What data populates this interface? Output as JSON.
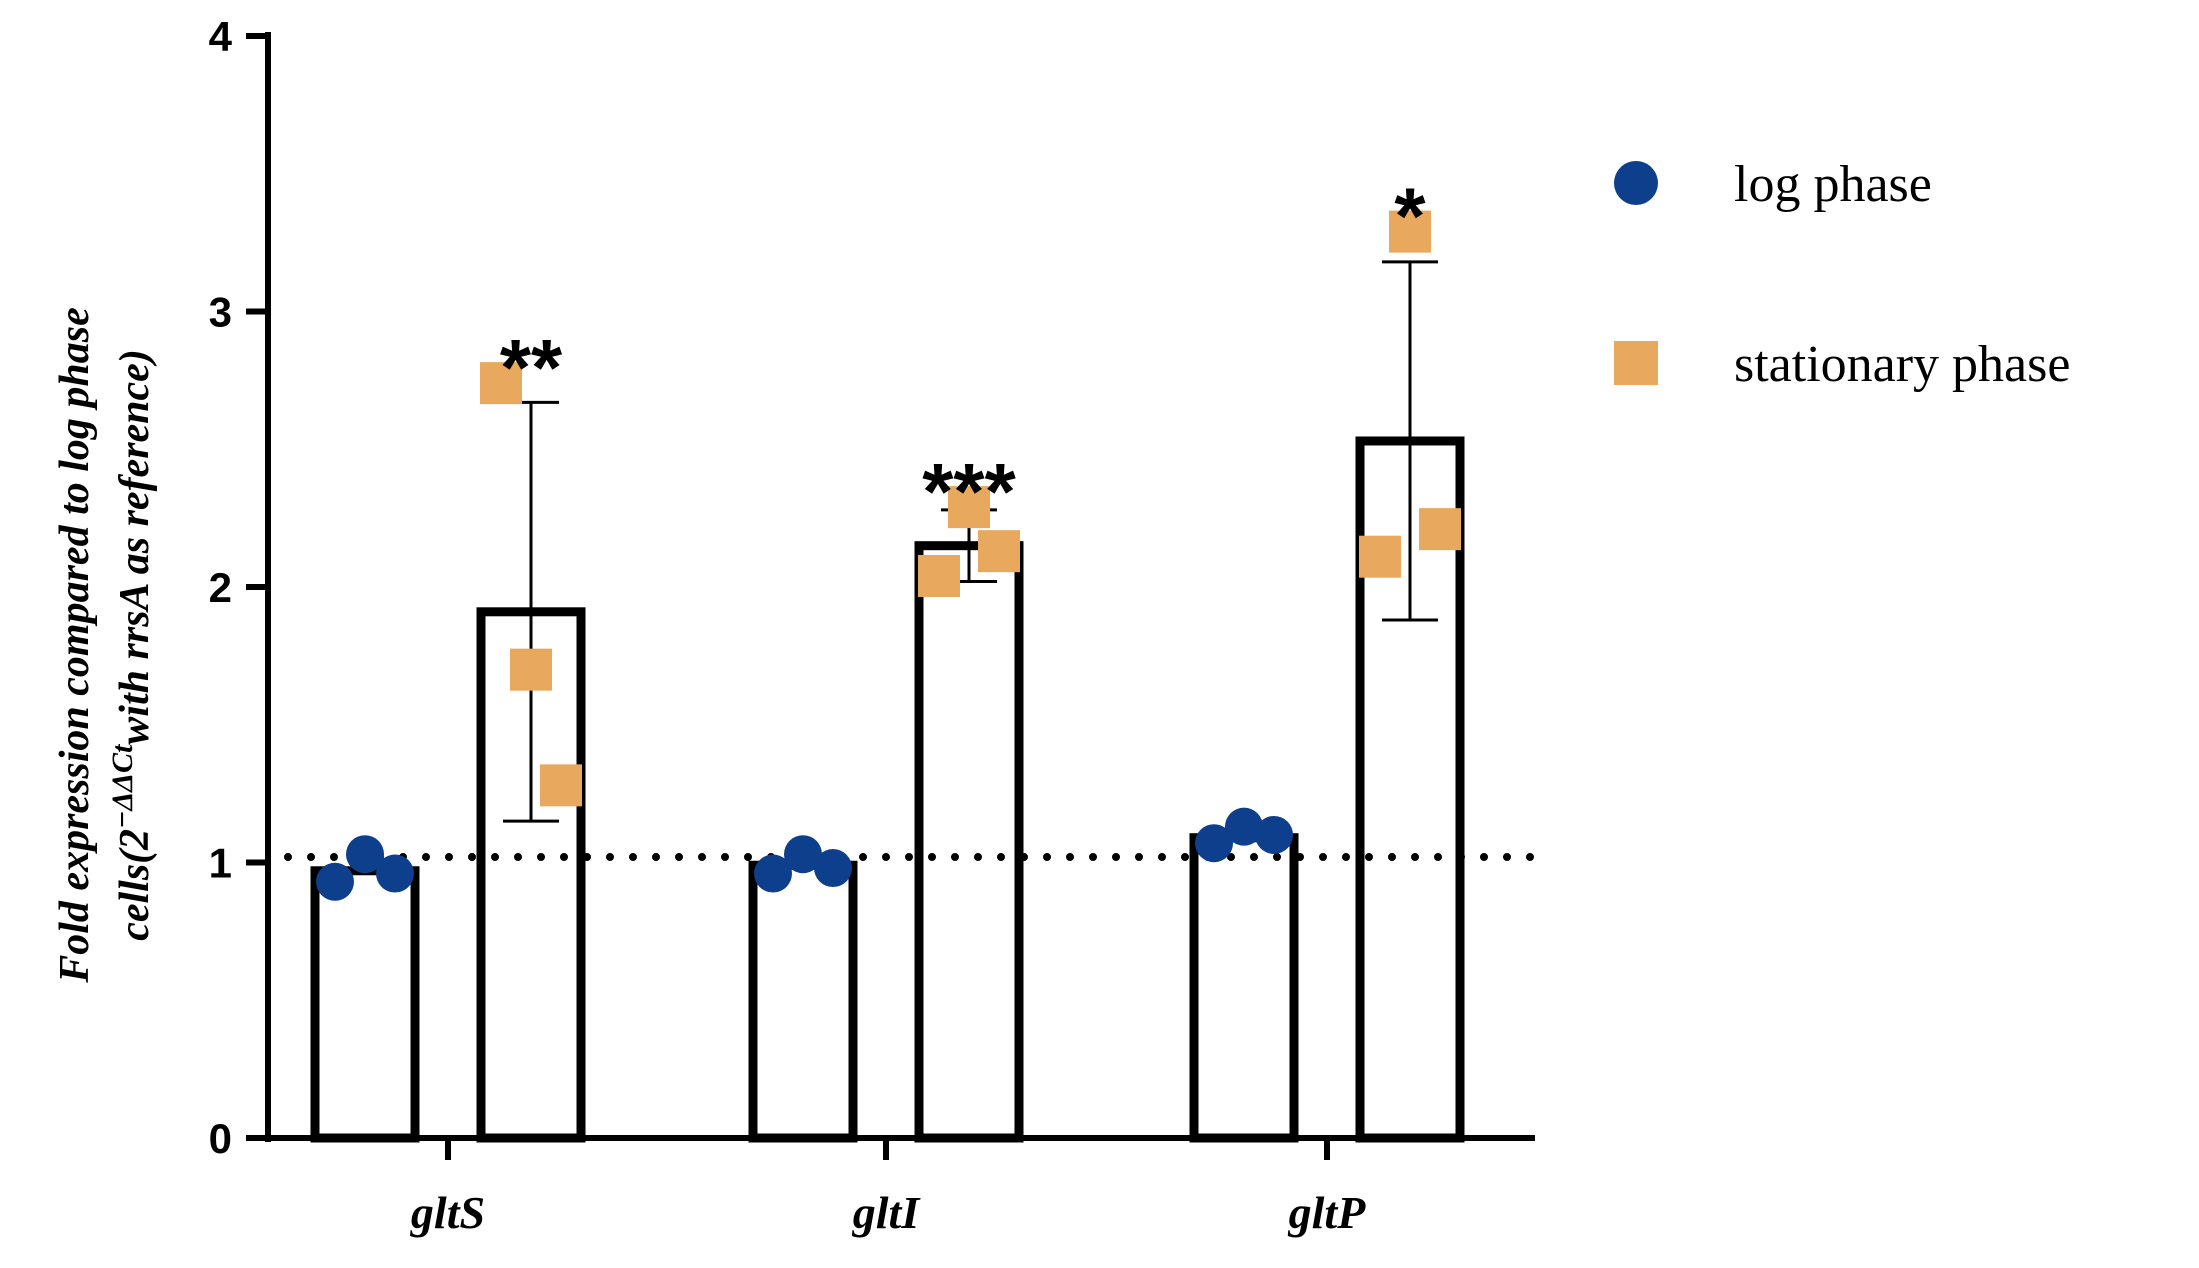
{
  "chart_data": {
    "type": "bar",
    "categories": [
      "gltS",
      "gltI",
      "gltP"
    ],
    "ylabel_line1": "Fold expression compared to log phase",
    "ylabel_line2_prefix": "cells(2",
    "ylabel_superscript": "−ΔΔCt",
    "ylabel_line2_suffix": "with rrsA as reference)",
    "ylim": [
      0,
      4
    ],
    "yticks": [
      "0",
      "1",
      "2",
      "3",
      "4"
    ],
    "reference_line": 1.02,
    "series": [
      {
        "name": "log phase",
        "color": "#0d3f8c",
        "marker": "circle",
        "values": [
          0.97,
          0.99,
          1.09
        ],
        "points": [
          [
            0.93,
            1.03,
            0.96
          ],
          [
            0.96,
            1.03,
            0.98
          ],
          [
            1.07,
            1.13,
            1.1
          ]
        ]
      },
      {
        "name": "stationary phase",
        "color": "#e8a85e",
        "marker": "square",
        "values": [
          1.91,
          2.15,
          2.53
        ],
        "errors": [
          0.76,
          0.13,
          0.65
        ],
        "points": [
          [
            2.74,
            1.7,
            1.28
          ],
          [
            2.04,
            2.29,
            2.13
          ],
          [
            2.11,
            3.29,
            2.21
          ]
        ],
        "significance": [
          "**",
          "***",
          "*"
        ]
      }
    ],
    "legend": {
      "position": "right",
      "entries": [
        "log phase",
        "stationary phase"
      ]
    },
    "grid": false
  }
}
